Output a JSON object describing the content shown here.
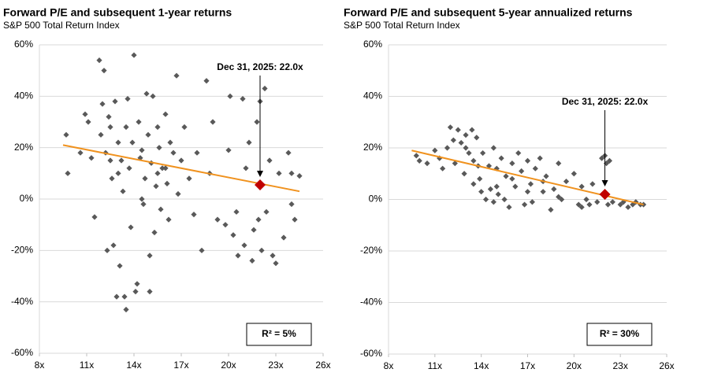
{
  "chart_data": [
    {
      "type": "scatter",
      "title": "Forward P/E and subsequent 1-year returns",
      "subtitle": "S&P 500 Total Return Index",
      "x": [
        9.7,
        9.8,
        10.6,
        10.9,
        11.1,
        11.3,
        11.5,
        11.8,
        11.9,
        12.0,
        12.1,
        12.2,
        12.3,
        12.4,
        12.5,
        12.6,
        12.7,
        12.8,
        12.9,
        13.0,
        13.1,
        13.2,
        13.3,
        13.4,
        13.5,
        13.5,
        13.6,
        13.7,
        13.8,
        13.9,
        14.0,
        14.1,
        14.2,
        14.3,
        14.4,
        14.5,
        14.6,
        14.7,
        14.8,
        14.9,
        15.0,
        15.0,
        15.1,
        15.2,
        15.3,
        15.4,
        15.5,
        15.6,
        15.7,
        15.8,
        16.0,
        16.1,
        16.2,
        16.3,
        16.5,
        16.7,
        16.8,
        17.0,
        17.2,
        17.5,
        17.8,
        18.0,
        18.3,
        18.6,
        18.8,
        19.0,
        19.3,
        19.8,
        20.0,
        20.1,
        20.3,
        20.5,
        20.6,
        20.9,
        21.0,
        21.1,
        21.3,
        21.5,
        21.6,
        21.8,
        21.9,
        22.0,
        22.1,
        22.3,
        22.4,
        22.6,
        22.8,
        23.0,
        23.2,
        23.5,
        23.8,
        24.0,
        24.2,
        24.5,
        24.0,
        13.0,
        14.5,
        15.5,
        16.0,
        12.5
      ],
      "values": [
        25,
        10,
        18,
        33,
        30,
        16,
        -7,
        54,
        25,
        37,
        50,
        18,
        -20,
        32,
        28,
        8,
        -18,
        38,
        -38,
        22,
        -26,
        15,
        3,
        -38,
        28,
        -43,
        39,
        12,
        -11,
        22,
        56,
        -36,
        -33,
        30,
        16,
        0,
        -2,
        8,
        41,
        25,
        -36,
        -22,
        14,
        40,
        -13,
        5,
        28,
        20,
        -4,
        12,
        33,
        6,
        -8,
        22,
        18,
        48,
        2,
        15,
        28,
        8,
        -6,
        18,
        -20,
        46,
        10,
        30,
        -8,
        -10,
        19,
        40,
        -14,
        -5,
        -22,
        39,
        -18,
        12,
        22,
        -24,
        -12,
        30,
        -8,
        38,
        -20,
        43,
        -5,
        15,
        -22,
        -25,
        10,
        -15,
        18,
        10,
        -8,
        9,
        -2,
        10,
        19,
        10,
        12,
        15
      ],
      "color": "#595959",
      "trendline": {
        "x": [
          9.5,
          24.5
        ],
        "values": [
          21,
          3
        ],
        "color": "#f0921e"
      },
      "highlight": {
        "x": 22,
        "value": 5.5,
        "color": "#c00000"
      },
      "annotation": "Dec 31, 2025: 22.0x",
      "r_squared_label": "R²  = 5%",
      "xlim": [
        8,
        26
      ],
      "xticks": [
        {
          "value": 8,
          "label": "8x"
        },
        {
          "value": 11,
          "label": "11x"
        },
        {
          "value": 14,
          "label": "14x"
        },
        {
          "value": 17,
          "label": "17x"
        },
        {
          "value": 20,
          "label": "20x"
        },
        {
          "value": 23,
          "label": "23x"
        },
        {
          "value": 26,
          "label": "26x"
        }
      ],
      "ylim": [
        -60,
        60
      ],
      "yticks": [
        {
          "value": -60,
          "label": "-60%"
        },
        {
          "value": -40,
          "label": "-40%"
        },
        {
          "value": -20,
          "label": "-20%"
        },
        {
          "value": 0,
          "label": "0%"
        },
        {
          "value": 20,
          "label": "20%"
        },
        {
          "value": 40,
          "label": "40%"
        },
        {
          "value": 60,
          "label": "60%"
        }
      ],
      "grid": true
    },
    {
      "type": "scatter",
      "title": "Forward P/E and subsequent 5-year annualized returns",
      "subtitle": "S&P 500 Total Return Index",
      "x": [
        9.8,
        10,
        10.5,
        11,
        11.3,
        11.5,
        11.8,
        12,
        12.2,
        12.5,
        12.7,
        12.9,
        13,
        13.2,
        13.4,
        13.5,
        13.5,
        13.7,
        13.9,
        14,
        14.1,
        14.3,
        14.5,
        14.6,
        14.8,
        15,
        15.1,
        15.3,
        15.5,
        15.6,
        15.8,
        16,
        16.2,
        16.4,
        16.6,
        16.8,
        17,
        17.2,
        17.3,
        17.5,
        17.8,
        18,
        18.2,
        18.5,
        18.7,
        19,
        19.2,
        19.5,
        20,
        20.3,
        20.5,
        20.8,
        21,
        21.2,
        21.5,
        21.8,
        22,
        22.1,
        22.2,
        22.3,
        22.5,
        23,
        23.2,
        23.5,
        23.8,
        24,
        24.3,
        24.5,
        12.3,
        13.8,
        14.8,
        16,
        17,
        18,
        15,
        13,
        19,
        20.5
      ],
      "values": [
        17,
        15,
        14,
        19,
        16,
        12,
        20,
        28,
        23,
        27,
        22,
        10,
        25,
        18,
        27,
        15,
        6,
        24,
        8,
        3,
        18,
        0,
        13,
        4,
        -1,
        12,
        2,
        16,
        0,
        9,
        -3,
        14,
        5,
        18,
        11,
        -2,
        15,
        6,
        -1,
        12,
        16,
        3,
        9,
        -4,
        4,
        14,
        0,
        7,
        10,
        -2,
        5,
        0,
        -2,
        6,
        -1,
        16,
        17,
        14,
        -2,
        15,
        -1,
        -2,
        -1,
        -3,
        -2,
        -1,
        -2,
        -2,
        14,
        13,
        20,
        8,
        3,
        7,
        5,
        20,
        1,
        -3
      ],
      "color": "#595959",
      "trendline": {
        "x": [
          9.5,
          24.5
        ],
        "values": [
          19,
          -2
        ],
        "color": "#f0921e"
      },
      "highlight": {
        "x": 22,
        "value": 2,
        "color": "#c00000"
      },
      "annotation": "Dec 31, 2025: 22.0x",
      "r_squared_label": "R²  = 30%",
      "xlim": [
        8,
        26
      ],
      "xticks": [
        {
          "value": 8,
          "label": "8x"
        },
        {
          "value": 11,
          "label": "11x"
        },
        {
          "value": 14,
          "label": "14x"
        },
        {
          "value": 17,
          "label": "17x"
        },
        {
          "value": 20,
          "label": "20x"
        },
        {
          "value": 23,
          "label": "23x"
        },
        {
          "value": 26,
          "label": "26x"
        }
      ],
      "ylim": [
        -60,
        60
      ],
      "yticks": [
        {
          "value": -60,
          "label": "-60%"
        },
        {
          "value": -40,
          "label": "-40%"
        },
        {
          "value": -20,
          "label": "-20%"
        },
        {
          "value": 0,
          "label": "0%"
        },
        {
          "value": 20,
          "label": "20%"
        },
        {
          "value": 40,
          "label": "40%"
        },
        {
          "value": 60,
          "label": "60%"
        }
      ],
      "grid": true
    }
  ]
}
